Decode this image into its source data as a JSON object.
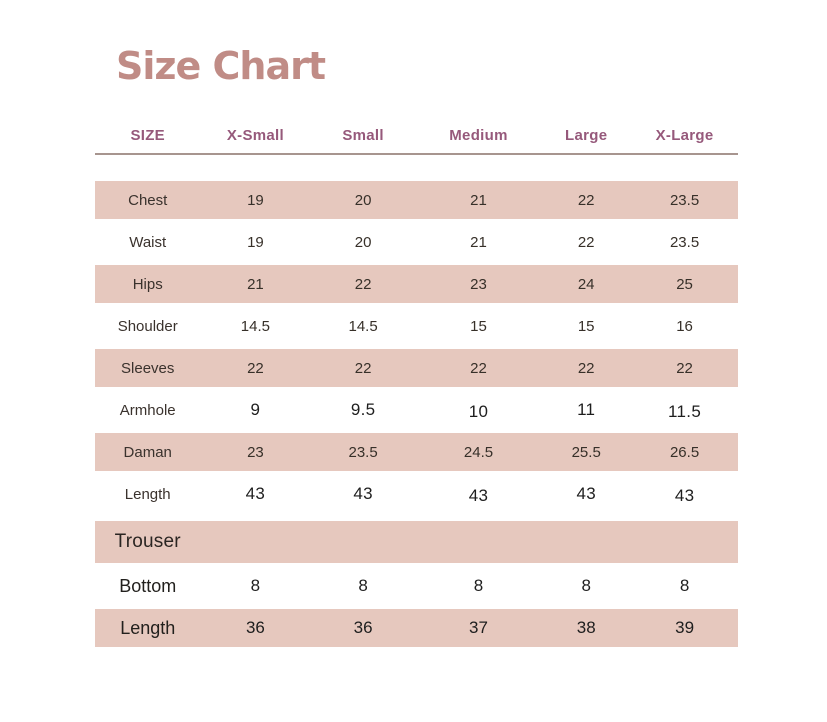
{
  "title": "Size Chart",
  "colors": {
    "title": "#c08c86",
    "header_text": "#96597b",
    "divider": "#98827b",
    "row_shaded": "#e6c8be",
    "label_text": "#3a322d",
    "value_text": "#373029"
  },
  "table": {
    "columns": [
      "SIZE",
      "X-Small",
      "Small",
      "Medium",
      "Large",
      "X-Large"
    ],
    "rows": [
      {
        "label": "Chest",
        "values": [
          "19",
          "20",
          "21",
          "22",
          "23.5"
        ],
        "shaded": true
      },
      {
        "label": "Waist",
        "values": [
          "19",
          "20",
          "21",
          "22",
          "23.5"
        ],
        "shaded": false
      },
      {
        "label": "Hips",
        "values": [
          "21",
          "22",
          "23",
          "24",
          "25"
        ],
        "shaded": true
      },
      {
        "label": "Shoulder",
        "values": [
          "14.5",
          "14.5",
          "15",
          "15",
          "16"
        ],
        "shaded": false
      },
      {
        "label": "Sleeves",
        "values": [
          "22",
          "22",
          "22",
          "22",
          "22"
        ],
        "shaded": true
      },
      {
        "label": "Armhole",
        "values": [
          "9",
          "9.5",
          "10",
          "11",
          "11.5"
        ],
        "shaded": false
      },
      {
        "label": "Daman",
        "values": [
          "23",
          "23.5",
          "24.5",
          "25.5",
          "26.5"
        ],
        "shaded": true
      },
      {
        "label": "Length",
        "values": [
          "43",
          "43",
          "43",
          "43",
          "43"
        ],
        "shaded": false
      },
      {
        "label": "Trouser",
        "values": [],
        "shaded": true,
        "section": true
      },
      {
        "label": "Bottom",
        "values": [
          "8",
          "8",
          "8",
          "8",
          "8"
        ],
        "shaded": false
      },
      {
        "label": "Length",
        "values": [
          "36",
          "36",
          "37",
          "38",
          "39"
        ],
        "shaded": true
      }
    ]
  }
}
